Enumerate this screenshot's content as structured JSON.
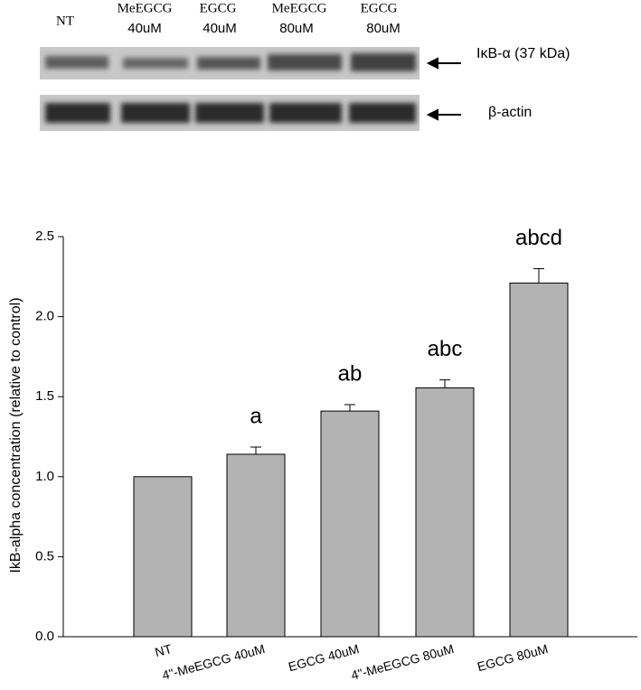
{
  "blot": {
    "lanes": [
      [
        "NT"
      ],
      [
        "MeEGCG",
        "40uM"
      ],
      [
        "EGCG",
        "40uM"
      ],
      [
        "MeEGCG",
        "80uM"
      ],
      [
        "EGCG",
        "80uM"
      ]
    ],
    "bands": [
      "IκB-α (37 kDa)",
      "β-actin"
    ]
  },
  "chart_data": {
    "type": "bar",
    "y_label": "IkB-alpha concentration (relative to control)",
    "categories": [
      "NT",
      "4\"-MeEGCG 40uM",
      "EGCG 40uM",
      "4\"-MeEGCG 80uM",
      "EGCG 80uM"
    ],
    "values": [
      1.0,
      1.14,
      1.41,
      1.555,
      2.21
    ],
    "errors": [
      0,
      0.045,
      0.04,
      0.05,
      0.09
    ],
    "annotations": [
      null,
      "a",
      "ab",
      "abc",
      "abcd"
    ],
    "color": "#b3b3b3",
    "ylim": [
      0,
      2.5
    ],
    "yticks": [
      {
        "value": 0,
        "label": "0.0"
      },
      0.5,
      {
        "value": 1,
        "label": "1.0"
      },
      1.5,
      {
        "value": 2,
        "label": "2.0"
      },
      2.5
    ]
  }
}
